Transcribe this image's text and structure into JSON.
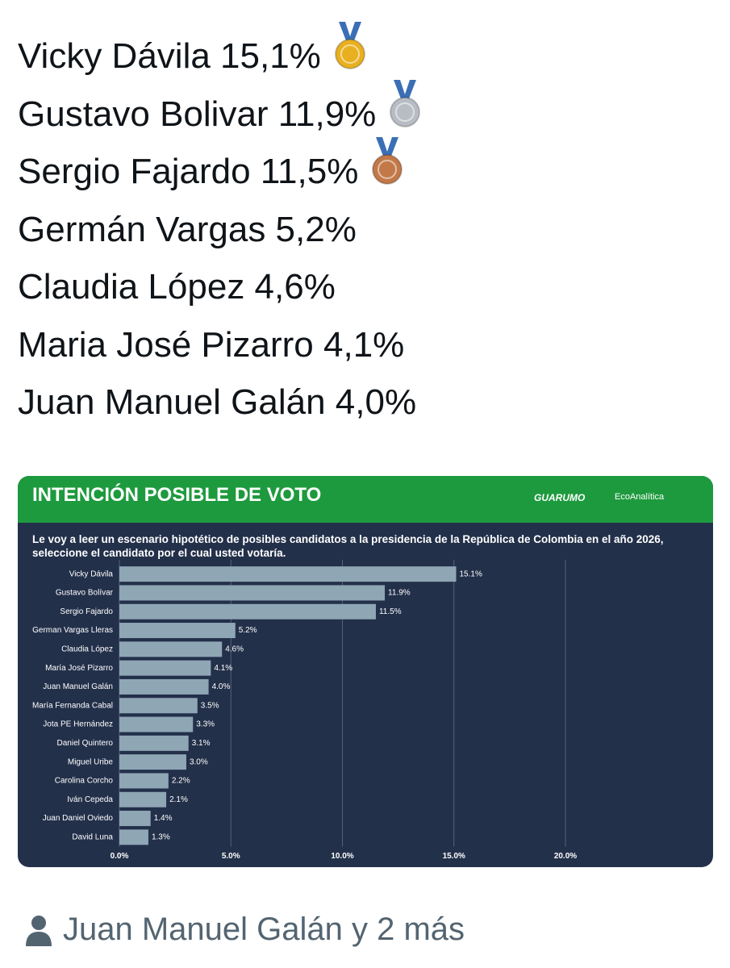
{
  "tweet": {
    "lines": [
      "Vicky Dávila 15,1%",
      "Gustavo Bolivar 11,9%",
      "Sergio Fajardo 11,5%",
      "Germán Vargas 5,2%",
      "Claudia López 4,6%",
      "Maria José Pizarro 4,1%",
      "Juan Manuel Galán 4,0%"
    ],
    "footer": "Juan Manuel Galán y 2 más"
  },
  "chart_data": {
    "type": "bar",
    "orientation": "horizontal",
    "title": "INTENCIÓN POSIBLE DE VOTO",
    "logos": [
      "GUARUMO",
      "EcoAnalítica"
    ],
    "subtitle": "Le voy a leer un escenario hipotético de posibles candidatos a la presidencia de la República de Colombia en el año 2026, seleccione el candidato por el cual usted votaría.",
    "categories": [
      "Vicky Dávila",
      "Gustavo Bolívar",
      "Sergio Fajardo",
      "German Vargas Lleras",
      "Claudia López",
      "María José Pizarro",
      "Juan Manuel Galán",
      "María Fernanda Cabal",
      "Jota PE Hernández",
      "Daniel Quintero",
      "Miguel Uribe",
      "Carolina Corcho",
      "Iván Cepeda",
      "Juan Daniel Oviedo",
      "David Luna"
    ],
    "values": [
      15.1,
      11.9,
      11.5,
      5.2,
      4.6,
      4.1,
      4.0,
      3.5,
      3.3,
      3.1,
      3.0,
      2.2,
      2.1,
      1.4,
      1.3
    ],
    "value_labels": [
      "15.1%",
      "11.9%",
      "11.5%",
      "5.2%",
      "4.6%",
      "4.1%",
      "4.0%",
      "3.5%",
      "3.3%",
      "3.1%",
      "3.0%",
      "2.2%",
      "2.1%",
      "1.4%",
      "1.3%"
    ],
    "color": "#8fa6b5",
    "xlim": [
      0,
      20
    ],
    "xticks": [
      {
        "value": 0,
        "label": "0.0%"
      },
      {
        "value": 5,
        "label": "5.0%"
      },
      {
        "value": 10,
        "label": "10.0%"
      },
      {
        "value": 15,
        "label": "15.0%"
      },
      {
        "value": 20,
        "label": "20.0%"
      }
    ],
    "grid": true
  }
}
